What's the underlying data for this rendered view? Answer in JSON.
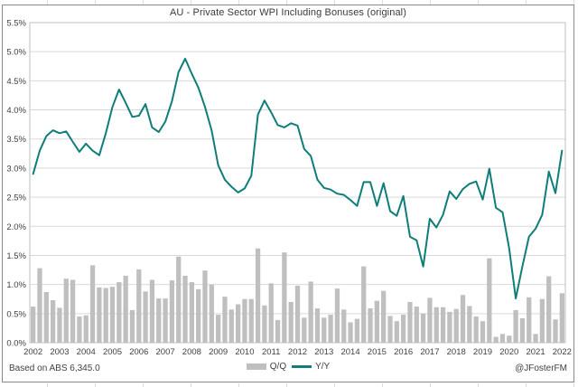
{
  "footer": {
    "source": "Based on ABS 6,345.0",
    "attribution": "@JFosterFM"
  },
  "colors": {
    "bar": "#bfbfbf",
    "line": "#0f7d7a",
    "gridline": "#d9d9d9",
    "plot_border": "#bfbfbf",
    "axis_text": "#404040",
    "title_text": "#3b3b3b"
  },
  "chart_data": {
    "type": "bar",
    "subtype": "bar+line combo",
    "title": "AU - Private Sector WPI Including Bonuses (original)",
    "xlabel": "",
    "ylabel": "",
    "ylim": [
      0,
      5.5
    ],
    "ytick_step": 0.5,
    "ytick_labels": [
      "0.0%",
      "0.5%",
      "1.0%",
      "1.5%",
      "2.0%",
      "2.5%",
      "3.0%",
      "3.5%",
      "4.0%",
      "4.5%",
      "5.0%",
      "5.5%"
    ],
    "x_tick_labels": [
      "2002",
      "2003",
      "2004",
      "2005",
      "2006",
      "2007",
      "2008",
      "2009",
      "2010",
      "2011",
      "2012",
      "2013",
      "2014",
      "2015",
      "2016",
      "2017",
      "2018",
      "2019",
      "2020",
      "2021",
      "2022"
    ],
    "grid": "horizontal",
    "legend_position": "bottom",
    "categories": [
      "2002Q1",
      "2002Q2",
      "2002Q3",
      "2002Q4",
      "2003Q1",
      "2003Q2",
      "2003Q3",
      "2003Q4",
      "2004Q1",
      "2004Q2",
      "2004Q3",
      "2004Q4",
      "2005Q1",
      "2005Q2",
      "2005Q3",
      "2005Q4",
      "2006Q1",
      "2006Q2",
      "2006Q3",
      "2006Q4",
      "2007Q1",
      "2007Q2",
      "2007Q3",
      "2007Q4",
      "2008Q1",
      "2008Q2",
      "2008Q3",
      "2008Q4",
      "2009Q1",
      "2009Q2",
      "2009Q3",
      "2009Q4",
      "2010Q1",
      "2010Q2",
      "2010Q3",
      "2010Q4",
      "2011Q1",
      "2011Q2",
      "2011Q3",
      "2011Q4",
      "2012Q1",
      "2012Q2",
      "2012Q3",
      "2012Q4",
      "2013Q1",
      "2013Q2",
      "2013Q3",
      "2013Q4",
      "2014Q1",
      "2014Q2",
      "2014Q3",
      "2014Q4",
      "2015Q1",
      "2015Q2",
      "2015Q3",
      "2015Q4",
      "2016Q1",
      "2016Q2",
      "2016Q3",
      "2016Q4",
      "2017Q1",
      "2017Q2",
      "2017Q3",
      "2017Q4",
      "2018Q1",
      "2018Q2",
      "2018Q3",
      "2018Q4",
      "2019Q1",
      "2019Q2",
      "2019Q3",
      "2019Q4",
      "2020Q1",
      "2020Q2",
      "2020Q3",
      "2020Q4",
      "2021Q1",
      "2021Q2",
      "2021Q3",
      "2021Q4",
      "2022Q1"
    ],
    "series": [
      {
        "name": "Q/Q",
        "type": "bar",
        "color": "#bfbfbf",
        "values": [
          0.62,
          1.28,
          0.87,
          0.73,
          0.6,
          1.1,
          1.08,
          0.45,
          0.47,
          1.33,
          0.95,
          0.94,
          0.96,
          1.04,
          1.15,
          0.56,
          1.26,
          0.88,
          1.08,
          0.76,
          0.76,
          1.07,
          1.48,
          1.15,
          1.04,
          0.92,
          1.24,
          1.0,
          0.48,
          0.79,
          0.57,
          0.66,
          0.75,
          0.75,
          1.62,
          0.64,
          1.02,
          0.39,
          1.55,
          0.7,
          0.98,
          0.43,
          1.05,
          0.59,
          0.43,
          0.48,
          0.93,
          0.57,
          0.35,
          0.41,
          1.31,
          0.59,
          0.72,
          0.89,
          0.46,
          0.37,
          0.48,
          0.7,
          0.62,
          0.5,
          0.77,
          0.61,
          0.61,
          0.53,
          0.58,
          0.82,
          0.63,
          0.45,
          0.37,
          1.45,
          0.1,
          0.15,
          0.12,
          0.56,
          0.42,
          0.78,
          0.15,
          0.75,
          1.14,
          0.4,
          0.85
        ]
      },
      {
        "name": "Y/Y",
        "type": "line",
        "color": "#0f7d7a",
        "values": [
          2.9,
          3.3,
          3.55,
          3.65,
          3.6,
          3.63,
          3.45,
          3.28,
          3.42,
          3.3,
          3.22,
          3.6,
          4.05,
          4.35,
          4.12,
          3.88,
          3.9,
          4.1,
          3.7,
          3.62,
          3.8,
          4.15,
          4.65,
          4.88,
          4.62,
          4.38,
          4.05,
          3.65,
          3.05,
          2.8,
          2.68,
          2.58,
          2.65,
          2.87,
          3.92,
          4.16,
          3.96,
          3.74,
          3.7,
          3.77,
          3.73,
          3.33,
          3.21,
          2.8,
          2.66,
          2.63,
          2.56,
          2.54,
          2.45,
          2.35,
          2.76,
          2.76,
          2.35,
          2.74,
          2.26,
          2.18,
          2.52,
          1.82,
          1.76,
          1.31,
          2.13,
          1.98,
          2.2,
          2.6,
          2.47,
          2.64,
          2.73,
          2.77,
          2.46,
          2.99,
          2.32,
          2.24,
          1.62,
          0.76,
          1.31,
          1.82,
          1.96,
          2.2,
          2.94,
          2.57,
          3.3
        ]
      }
    ]
  }
}
